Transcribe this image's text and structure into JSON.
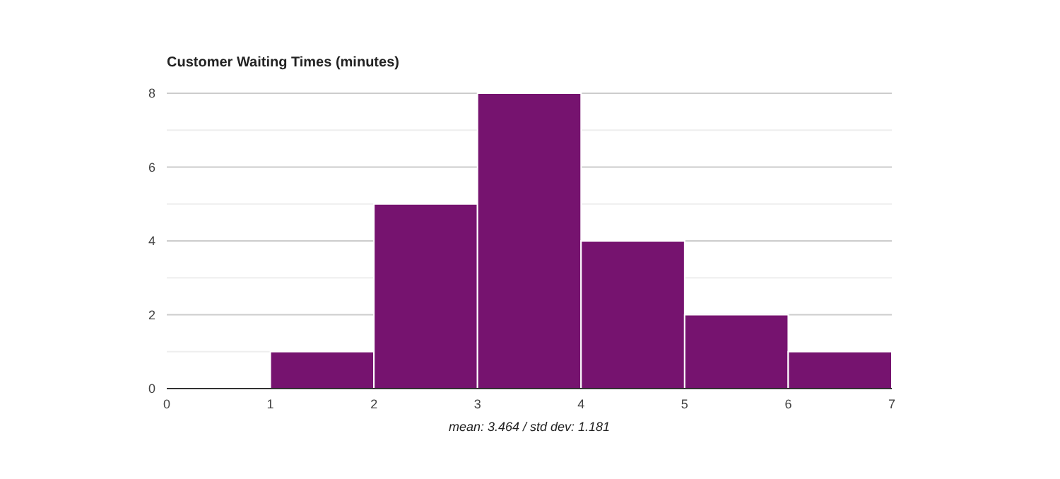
{
  "chart_data": {
    "type": "histogram",
    "title": "Customer Waiting Times (minutes)",
    "xlabel": "mean: 3.464 / std dev: 1.181",
    "bins": [
      0,
      1,
      2,
      3,
      4,
      5,
      6,
      7
    ],
    "values": [
      0,
      1,
      5,
      8,
      4,
      2,
      1
    ],
    "color": "#76136f",
    "xlim": [
      0,
      7
    ],
    "xticks": [
      0,
      1,
      2,
      3,
      4,
      5,
      6,
      7
    ],
    "ylim": [
      0,
      8
    ],
    "yticks": [
      0,
      {
        "value": 1,
        "label": null
      },
      2,
      {
        "value": 3,
        "label": null
      },
      4,
      {
        "value": 5,
        "label": null
      },
      6,
      {
        "value": 7,
        "label": null
      },
      8
    ],
    "grid": "y"
  }
}
